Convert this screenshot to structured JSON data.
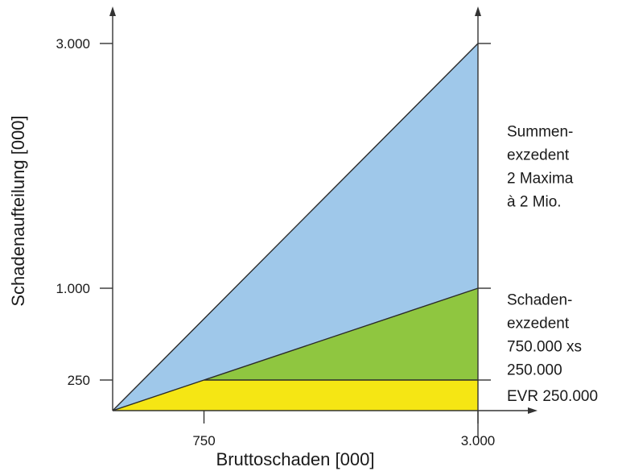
{
  "chart_data": {
    "type": "area",
    "title": "",
    "xlabel": "Bruttoschaden [000]",
    "ylabel": "Schadenaufteilung [000]",
    "xlim": [
      0,
      3000
    ],
    "ylim": [
      0,
      3000
    ],
    "x_ticks": [
      {
        "value": 750,
        "label": "750"
      },
      {
        "value": 3000,
        "label": "3.000"
      }
    ],
    "y_ticks": [
      {
        "value": 250,
        "label": "250"
      },
      {
        "value": 1000,
        "label": "1.000"
      },
      {
        "value": 3000,
        "label": "3.000"
      }
    ],
    "grid": false,
    "legend": "none",
    "layers": [
      {
        "name": "EVR",
        "color": "#f5e614",
        "points": [
          [
            0,
            0
          ],
          [
            750,
            250
          ],
          [
            3000,
            250
          ]
        ]
      },
      {
        "name": "Schadenexzedent",
        "color": "#8fc640",
        "points": [
          [
            750,
            250
          ],
          [
            3000,
            1000
          ]
        ]
      },
      {
        "name": "Summenexzedent",
        "color": "#9fc8ea",
        "points": [
          [
            0,
            0
          ],
          [
            3000,
            3000
          ]
        ]
      }
    ],
    "annotations": [
      {
        "id": "summen",
        "anchor_y": 2000,
        "lines": [
          "Summen-",
          "exzedent",
          "2 Maxima",
          "à 2 Mio."
        ]
      },
      {
        "id": "schaden",
        "anchor_y": 625,
        "lines": [
          "Schaden-",
          "exzedent",
          "750.000 xs",
          "250.000"
        ]
      },
      {
        "id": "evr",
        "anchor_y": 125,
        "lines": [
          "EVR 250.000"
        ]
      }
    ]
  }
}
